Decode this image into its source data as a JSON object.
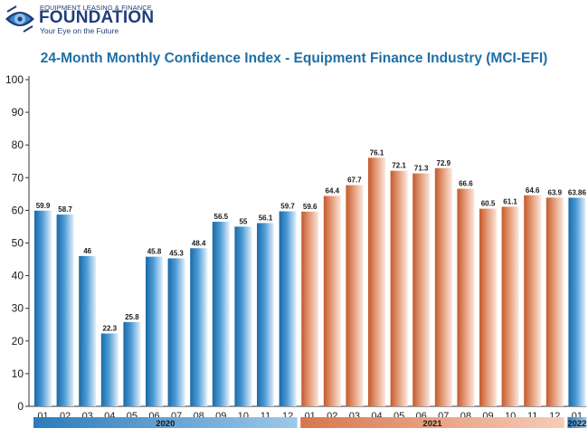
{
  "logo": {
    "line1": "EQUIPMENT LEASING & FINANCE",
    "name": "FOUNDATION",
    "tagline": "Your Eye on the Future",
    "colors": {
      "navy": "#1f3e7a",
      "blue": "#3b86c6",
      "light": "#8fc2ea"
    }
  },
  "chart_data": {
    "type": "bar",
    "title": "24-Month Monthly Confidence Index - Equipment Finance Industry (MCI-EFI)",
    "ylim": [
      0,
      100
    ],
    "yticks": [
      0,
      10,
      20,
      30,
      40,
      50,
      60,
      70,
      80,
      90,
      100
    ],
    "grid": false,
    "categories": [
      "01",
      "02",
      "03",
      "04",
      "05",
      "06",
      "07",
      "08",
      "09",
      "10",
      "11",
      "12",
      "01",
      "02",
      "03",
      "04",
      "05",
      "06",
      "07",
      "08",
      "09",
      "10",
      "11",
      "12",
      "01"
    ],
    "values": [
      59.9,
      58.7,
      46,
      22.3,
      25.8,
      45.8,
      45.3,
      48.4,
      56.5,
      55,
      56.1,
      59.7,
      59.6,
      64.4,
      67.7,
      76.1,
      72.1,
      71.3,
      72.9,
      66.6,
      60.5,
      61.1,
      64.6,
      63.9,
      63.86
    ],
    "labels": [
      "59.9",
      "58.7",
      "46",
      "22.3",
      "25.8",
      "45.8",
      "45.3",
      "48.4",
      "56.5",
      "55",
      "56.1",
      "59.7",
      "59.6",
      "64.4",
      "67.7",
      "76.1",
      "72.1",
      "71.3",
      "72.9",
      "66.6",
      "60.5",
      "61.1",
      "64.6",
      "63.9",
      "63.86"
    ],
    "year_groups": [
      {
        "label": "2020",
        "start": 0,
        "end": 11,
        "color": "blue"
      },
      {
        "label": "2021",
        "start": 12,
        "end": 23,
        "color": "orange"
      },
      {
        "label": "2022",
        "start": 24,
        "end": 24,
        "color": "blue"
      }
    ],
    "colors": {
      "blue": {
        "dark": "#1a6aa8",
        "mid": "#4d9bd6",
        "light": "#e4f1fb"
      },
      "orange": {
        "dark": "#c45a2c",
        "mid": "#e49a77",
        "light": "#fbe7dc"
      }
    }
  }
}
